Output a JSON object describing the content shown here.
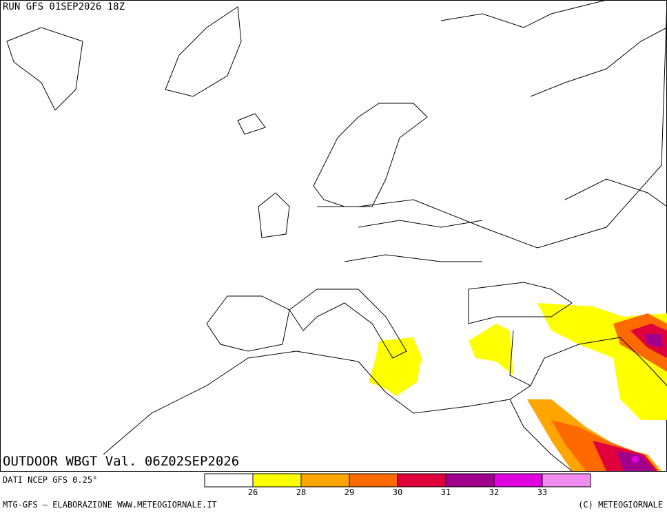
{
  "header": {
    "run": "RUN GFS 01SEP2026 18Z",
    "title": "OUTDOOR WBGT Val. 06Z02SEP2026"
  },
  "legend": {
    "source": "DATI NCEP GFS 0.25°",
    "colors": [
      "#ffffff",
      "#ffff00",
      "#ffa500",
      "#ff6a00",
      "#e0003c",
      "#a0008c",
      "#e000e0",
      "#f08cf0"
    ],
    "ticks": [
      26,
      28,
      29,
      30,
      31,
      32,
      33
    ]
  },
  "footer": {
    "left": "MTG-GFS — ELABORAZIONE WWW.METEOGIORNALE.IT",
    "right": "(C) METEOGIORNALE"
  }
}
